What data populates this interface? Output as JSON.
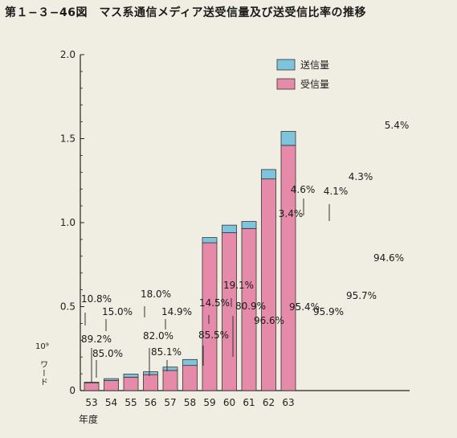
{
  "title": "第１−３−46図　マス系通信メディア送受信量及び送受信比率の推移",
  "chart_data": {
    "type": "bar",
    "stacked": true,
    "categories": [
      "53",
      "54",
      "55",
      "56",
      "57",
      "58",
      "59",
      "60",
      "61",
      "62",
      "63"
    ],
    "xlabel": "年度",
    "ylabel_exponent": "10⁹",
    "ylabel_unit": "ワード",
    "ylim": [
      0,
      2.0
    ],
    "yticks": [
      "0",
      "0.5",
      "1.0",
      "1.5",
      "2.0"
    ],
    "legend": [
      {
        "name": "送信量",
        "color": "#7ec4dc"
      },
      {
        "name": "受信量",
        "color": "#e68aaa"
      }
    ],
    "legend_position": "top-right",
    "series": [
      {
        "name": "受信量",
        "color": "#e68aaa",
        "values": [
          0.045,
          0.06,
          0.08,
          0.095,
          0.12,
          0.15,
          0.88,
          0.94,
          0.965,
          1.26,
          1.46
        ]
      },
      {
        "name": "送信量",
        "color": "#7ec4dc",
        "values": [
          0.005,
          0.011,
          0.018,
          0.017,
          0.02,
          0.035,
          0.031,
          0.045,
          0.042,
          0.056,
          0.083
        ]
      }
    ],
    "send_pct": [
      "10.8%",
      "15.0%",
      "18.0%",
      "14.9%",
      "14.5%",
      "19.1%",
      "3.4%",
      "4.6%",
      "4.1%",
      "4.3%",
      "5.4%"
    ],
    "receive_pct": [
      "89.2%",
      "85.0%",
      "82.0%",
      "85.1%",
      "85.5%",
      "80.9%",
      "96.6%",
      "95.4%",
      "95.9%",
      "95.7%",
      "94.6%"
    ]
  }
}
